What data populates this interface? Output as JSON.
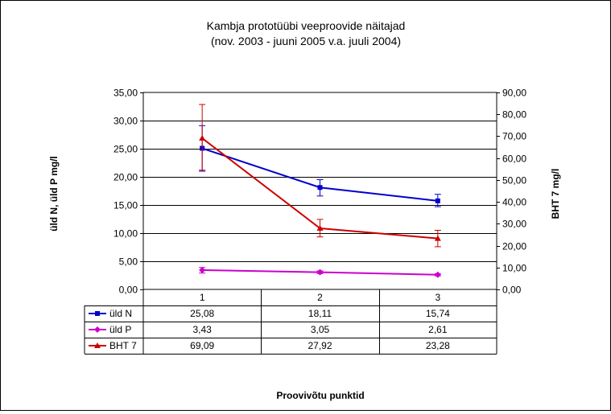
{
  "chart_data": {
    "type": "line",
    "title": "Kambja prototüübi veeproovide näitajad",
    "subtitle": "(nov. 2003 - juuni 2005 v.a. juuli 2004)",
    "xlabel": "Proovivõtu punktid",
    "ylabel": "üld N, üld P  mg/l",
    "y2label": "BHT 7  mg/l",
    "categories": [
      "1",
      "2",
      "3"
    ],
    "ylim": [
      0,
      35
    ],
    "y2lim": [
      0,
      90
    ],
    "yticks": [
      "0,00",
      "5,00",
      "10,00",
      "15,00",
      "20,00",
      "25,00",
      "30,00",
      "35,00"
    ],
    "y2ticks": [
      "0,00",
      "10,00",
      "20,00",
      "30,00",
      "40,00",
      "50,00",
      "60,00",
      "70,00",
      "80,00",
      "90,00"
    ],
    "grid": true,
    "legend": "data-table",
    "series": [
      {
        "name": "üld N",
        "axis": "left",
        "color": "#0000CC",
        "marker": "square",
        "values": [
          25.08,
          18.11,
          15.74
        ],
        "labels": [
          "25,08",
          "18,11",
          "15,74"
        ],
        "error": [
          [
            21.0,
            29.1
          ],
          [
            16.6,
            19.5
          ],
          [
            14.7,
            16.9
          ]
        ]
      },
      {
        "name": "üld P",
        "axis": "left",
        "color": "#CC00CC",
        "marker": "diamond",
        "values": [
          3.43,
          3.05,
          2.61
        ],
        "labels": [
          "3,43",
          "3,05",
          "2,61"
        ],
        "error": [
          [
            2.9,
            3.9
          ],
          [
            2.8,
            3.3
          ],
          [
            2.4,
            2.8
          ]
        ]
      },
      {
        "name": "BHT 7",
        "axis": "right",
        "color": "#CC0000",
        "marker": "triangle",
        "values": [
          69.09,
          27.92,
          23.28
        ],
        "labels": [
          "69,09",
          "27,92",
          "23,28"
        ],
        "error": [
          [
            54.5,
            84.5
          ],
          [
            24.0,
            32.0
          ],
          [
            19.5,
            27.0
          ]
        ]
      }
    ]
  }
}
